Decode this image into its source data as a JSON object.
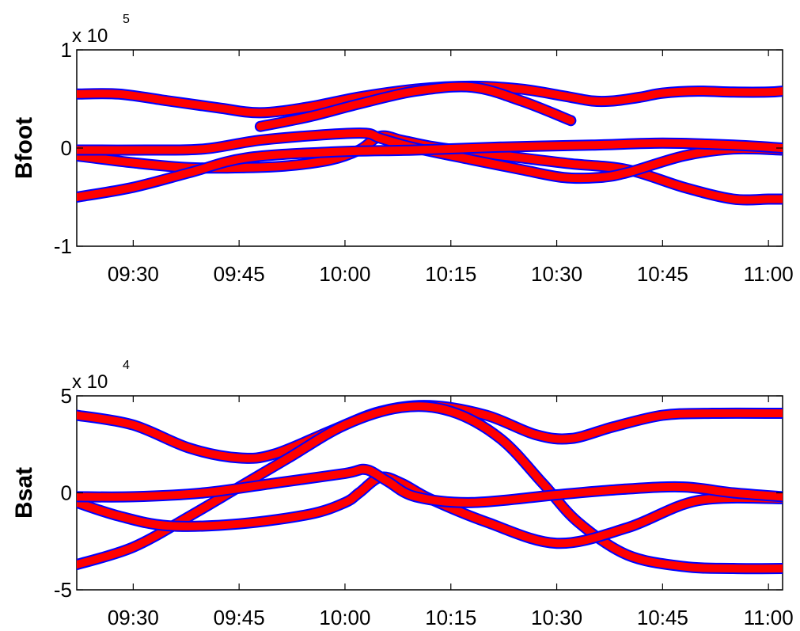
{
  "chart_data": [
    {
      "type": "line",
      "ylabel": "Bfoot",
      "y_exponent_base": "x 10",
      "y_exponent_power": "5",
      "ylim": [
        -1,
        1
      ],
      "yticks": [
        -1,
        0,
        1
      ],
      "ytick_labels": [
        "-1",
        "0",
        "1"
      ],
      "xlim_minutes": [
        562,
        662
      ],
      "xticks": [
        570,
        585,
        600,
        615,
        630,
        645,
        660
      ],
      "xtick_labels": [
        "09:30",
        "09:45",
        "10:00",
        "10:15",
        "10:30",
        "10:45",
        "11:00"
      ],
      "line_color": "#ff0000",
      "edge_color": "#0000ff",
      "series": [
        {
          "x": [
            562,
            568,
            575,
            582,
            588,
            595,
            602,
            610,
            618,
            625,
            631,
            635,
            638,
            642,
            645,
            650,
            655,
            660,
            662
          ],
          "y": [
            0.55,
            0.55,
            0.48,
            0.41,
            0.36,
            0.42,
            0.52,
            0.6,
            0.63,
            0.6,
            0.53,
            0.48,
            0.48,
            0.52,
            0.56,
            0.58,
            0.57,
            0.57,
            0.58
          ]
        },
        {
          "x": [
            588,
            595,
            602,
            610,
            618,
            625,
            632
          ],
          "y": [
            0.22,
            0.32,
            0.45,
            0.58,
            0.62,
            0.48,
            0.28
          ]
        },
        {
          "x": [
            562,
            570,
            578,
            586,
            592,
            598,
            602,
            605,
            608,
            612,
            618,
            625,
            632,
            640,
            648,
            655,
            660,
            662
          ],
          "y": [
            -0.08,
            -0.15,
            -0.2,
            -0.2,
            -0.18,
            -0.12,
            -0.02,
            0.12,
            0.08,
            0.02,
            -0.04,
            -0.1,
            -0.16,
            -0.22,
            -0.4,
            -0.52,
            -0.52,
            -0.52
          ]
        },
        {
          "x": [
            562,
            572,
            580,
            588,
            598,
            603,
            605,
            610,
            618,
            625,
            631,
            636,
            640,
            648,
            655,
            662
          ],
          "y": [
            -0.02,
            -0.02,
            -0.01,
            0.08,
            0.14,
            0.15,
            0.1,
            0.0,
            -0.12,
            -0.22,
            -0.3,
            -0.3,
            -0.25,
            -0.08,
            -0.01,
            -0.02
          ]
        },
        {
          "x": [
            562,
            570,
            578,
            586,
            598,
            610,
            622,
            635,
            645,
            655,
            662
          ],
          "y": [
            -0.5,
            -0.4,
            -0.25,
            -0.1,
            -0.04,
            -0.02,
            0.01,
            0.03,
            0.05,
            0.03,
            0.0
          ]
        }
      ]
    },
    {
      "type": "line",
      "ylabel": "Bsat",
      "y_exponent_base": "x 10",
      "y_exponent_power": "4",
      "ylim": [
        -5,
        5
      ],
      "yticks": [
        -5,
        0,
        5
      ],
      "ytick_labels": [
        "-5",
        "0",
        "5"
      ],
      "xlim_minutes": [
        562,
        662
      ],
      "xticks": [
        570,
        585,
        600,
        615,
        630,
        645,
        660
      ],
      "xtick_labels": [
        "09:30",
        "09:45",
        "10:00",
        "10:15",
        "10:30",
        "10:45",
        "11:00"
      ],
      "line_color": "#ff0000",
      "edge_color": "#0000ff",
      "series": [
        {
          "x": [
            562,
            570,
            578,
            585,
            590,
            598,
            605,
            612,
            620,
            627,
            632,
            638,
            645,
            652,
            662
          ],
          "y": [
            4.0,
            3.5,
            2.3,
            1.8,
            2.0,
            3.2,
            4.2,
            4.5,
            4.0,
            3.0,
            2.8,
            3.4,
            4.0,
            4.1,
            4.1
          ]
        },
        {
          "x": [
            562,
            570,
            578,
            585,
            592,
            600,
            608,
            615,
            622,
            628,
            633,
            640,
            648,
            655,
            662
          ],
          "y": [
            -3.7,
            -2.8,
            -1.2,
            0.3,
            1.8,
            3.5,
            4.4,
            4.2,
            2.8,
            0.5,
            -1.5,
            -3.2,
            -3.8,
            -3.9,
            -3.9
          ]
        },
        {
          "x": [
            562,
            568,
            575,
            585,
            595,
            600,
            602,
            605,
            608,
            612,
            620,
            630,
            640,
            650,
            662
          ],
          "y": [
            -0.5,
            -1.2,
            -1.7,
            -1.6,
            -1.1,
            -0.5,
            0.0,
            0.8,
            0.5,
            -0.3,
            -1.5,
            -2.6,
            -1.8,
            -0.4,
            -0.3
          ]
        },
        {
          "x": [
            562,
            570,
            580,
            590,
            600,
            603,
            606,
            610,
            618,
            630,
            640,
            648,
            655,
            662
          ],
          "y": [
            -0.2,
            -0.2,
            0.0,
            0.5,
            1.0,
            1.2,
            0.6,
            -0.2,
            -0.5,
            -0.1,
            0.2,
            0.3,
            0.0,
            -0.2
          ]
        }
      ]
    }
  ]
}
